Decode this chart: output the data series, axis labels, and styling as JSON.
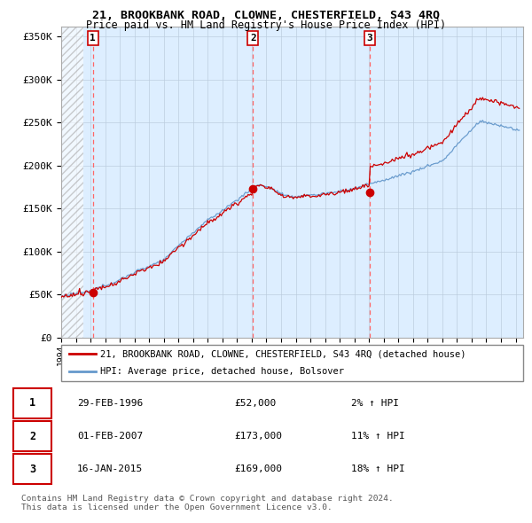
{
  "title": "21, BROOKBANK ROAD, CLOWNE, CHESTERFIELD, S43 4RQ",
  "subtitle": "Price paid vs. HM Land Registry's House Price Index (HPI)",
  "ylabel_ticks": [
    "£0",
    "£50K",
    "£100K",
    "£150K",
    "£200K",
    "£250K",
    "£300K",
    "£350K"
  ],
  "ytick_values": [
    0,
    50000,
    100000,
    150000,
    200000,
    250000,
    300000,
    350000
  ],
  "ylim": [
    0,
    362000
  ],
  "xlim_start": 1994.0,
  "xlim_end": 2025.5,
  "sale_dates": [
    1996.16,
    2007.08,
    2015.04
  ],
  "sale_prices": [
    52000,
    173000,
    169000
  ],
  "sale_labels": [
    "1",
    "2",
    "3"
  ],
  "legend_property_label": "21, BROOKBANK ROAD, CLOWNE, CHESTERFIELD, S43 4RQ (detached house)",
  "legend_hpi_label": "HPI: Average price, detached house, Bolsover",
  "table_rows": [
    [
      "1",
      "29-FEB-1996",
      "£52,000",
      "2% ↑ HPI"
    ],
    [
      "2",
      "01-FEB-2007",
      "£173,000",
      "11% ↑ HPI"
    ],
    [
      "3",
      "16-JAN-2015",
      "£169,000",
      "18% ↑ HPI"
    ]
  ],
  "footer": "Contains HM Land Registry data © Crown copyright and database right 2024.\nThis data is licensed under the Open Government Licence v3.0.",
  "property_color": "#cc0000",
  "hpi_color": "#6699cc",
  "dashed_vline_color": "#ff6666",
  "grid_color": "#bbccdd",
  "plot_bg_color": "#ddeeff",
  "hatch_color": "#cccccc",
  "fig_bg_color": "#ffffff"
}
